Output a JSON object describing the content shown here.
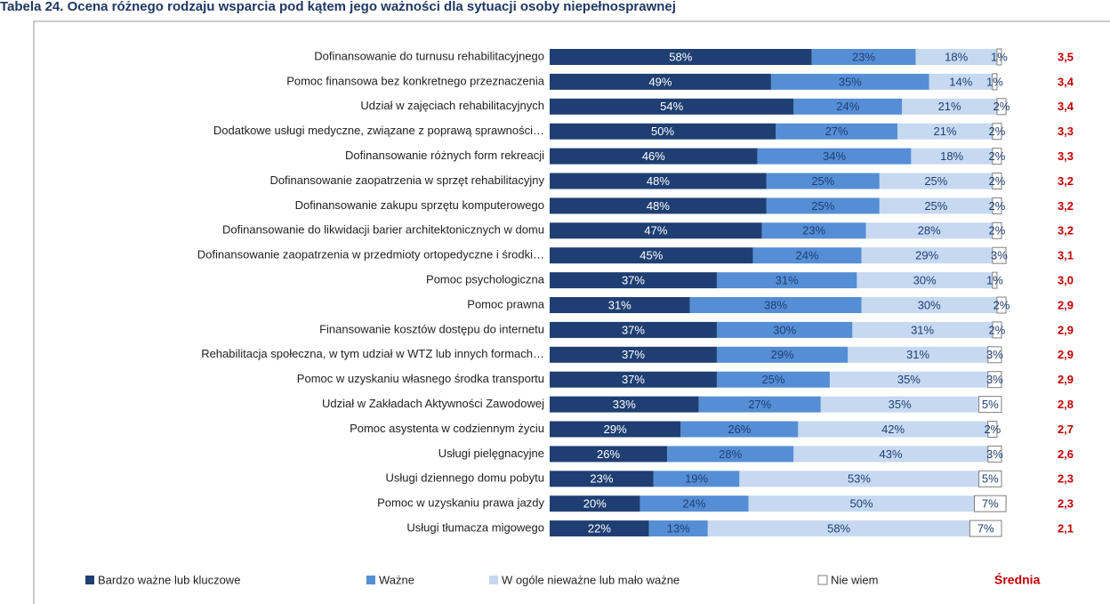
{
  "chart_data": {
    "type": "stacked-bar-horizontal",
    "title": "Tabela 24. Ocena różnego rodzaju wsparcia pod kątem jego ważności dla sytuacji osoby niepełnosprawnej",
    "categories": [
      "Dofinansowanie do turnusu rehabilitacyjnego",
      "Pomoc finansowa bez konkretnego przeznaczenia",
      "Udział w zajęciach rehabilitacyjnych",
      "Dodatkowe usługi medyczne, związane z poprawą sprawności…",
      "Dofinansowanie różnych form rekreacji",
      "Dofinansowanie zaopatrzenia w sprzęt rehabilitacyjny",
      "Dofinansowanie zakupu sprzętu komputerowego",
      "Dofinansowanie do likwidacji barier architektonicznych w domu",
      "Dofinansowanie zaopatrzenia w przedmioty ortopedyczne i środki…",
      "Pomoc psychologiczna",
      "Pomoc prawna",
      "Finansowanie kosztów dostępu do internetu",
      "Rehabilitacja społeczna, w tym udział w WTZ lub innych formach…",
      "Pomoc w uzyskaniu własnego środka transportu",
      "Udział w Zakładach Aktywności Zawodowej",
      "Pomoc asystenta w codziennym życiu",
      "Usługi pielęgnacyjne",
      "Usługi dziennego domu pobytu",
      "Pomoc w uzyskaniu prawa jazdy",
      "Usługi tłumacza migowego"
    ],
    "xlim": [
      0,
      100
    ],
    "series": [
      {
        "name": "Bardzo ważne lub kluczowe",
        "color": "#1f3f73",
        "text_color": "#ffffff",
        "values": [
          58,
          49,
          54,
          50,
          46,
          48,
          48,
          47,
          45,
          37,
          31,
          37,
          37,
          37,
          33,
          29,
          26,
          23,
          20,
          22
        ],
        "value_labels": [
          "58%",
          "49%",
          "54%",
          "50%",
          "46%",
          "48%",
          "48%",
          "47%",
          "45%",
          "37%",
          "31%",
          "37%",
          "37%",
          "37%",
          "33%",
          "29%",
          "26%",
          "23%",
          "20%",
          "22%"
        ]
      },
      {
        "name": "Ważne",
        "color": "#558ed5",
        "text_color": "#1f3f73",
        "values": [
          23,
          35,
          24,
          27,
          34,
          25,
          25,
          23,
          24,
          31,
          38,
          30,
          29,
          25,
          27,
          26,
          28,
          19,
          24,
          13
        ],
        "value_labels": [
          "23%",
          "35%",
          "24%",
          "27%",
          "34%",
          "25%",
          "25%",
          "23%",
          "24%",
          "31%",
          "38%",
          "30%",
          "29%",
          "25%",
          "27%",
          "26%",
          "28%",
          "19%",
          "24%",
          "13%"
        ]
      },
      {
        "name": "W ogóle nieważne lub mało ważne",
        "color": "#c6d9f1",
        "text_color": "#1f3f73",
        "values": [
          18,
          14,
          21,
          21,
          18,
          25,
          25,
          28,
          29,
          30,
          30,
          31,
          31,
          35,
          35,
          42,
          43,
          53,
          50,
          58
        ],
        "value_labels": [
          "18%",
          "14%",
          "21%",
          "21%",
          "18%",
          "25%",
          "25%",
          "28%",
          "29%",
          "30%",
          "30%",
          "31%",
          "31%",
          "35%",
          "35%",
          "42%",
          "43%",
          "53%",
          "50%",
          "58%"
        ]
      },
      {
        "name": "Nie wiem",
        "color": "#ffffff",
        "text_color": "#1f3f73",
        "values": [
          1,
          1,
          2,
          2,
          2,
          2,
          2,
          2,
          3,
          1,
          2,
          2,
          3,
          3,
          5,
          2,
          3,
          5,
          7,
          7
        ],
        "value_labels": [
          "1%",
          "1%",
          "2%",
          "2%",
          "2%",
          "2%",
          "2%",
          "2%",
          "3%",
          "1%",
          "2%",
          "2%",
          "3%",
          "3%",
          "5%",
          "2%",
          "3%",
          "5%",
          "7%",
          "7%"
        ]
      }
    ],
    "averages": {
      "name": "Średnia",
      "color": "#c00000",
      "values": [
        3.5,
        3.4,
        3.4,
        3.3,
        3.3,
        3.2,
        3.2,
        3.2,
        3.1,
        3.0,
        2.9,
        2.9,
        2.9,
        2.9,
        2.8,
        2.7,
        2.6,
        2.3,
        2.3,
        2.1
      ],
      "value_labels": [
        "3,5",
        "3,4",
        "3,4",
        "3,3",
        "3,3",
        "3,2",
        "3,2",
        "3,2",
        "3,1",
        "3,0",
        "2,9",
        "2,9",
        "2,9",
        "2,9",
        "2,8",
        "2,7",
        "2,6",
        "2,3",
        "2,3",
        "2,1"
      ]
    }
  }
}
